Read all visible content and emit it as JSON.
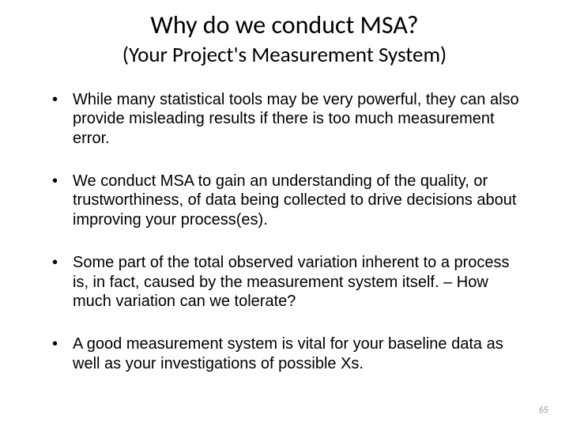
{
  "title": "Why do we conduct MSA?",
  "subtitle": "(Your Project's Measurement System)",
  "bullets": [
    "While many statistical tools may be very powerful, they can also provide misleading results if there is too much measurement error.",
    "We conduct MSA to gain an understanding of the quality, or trustworthiness, of data being collected to drive decisions about improving your process(es).",
    "Some part of the total observed variation inherent to a process is, in fact, caused by the measurement system itself. – How much variation can we tolerate?",
    "A good measurement system is vital for your baseline data as well as your investigations of possible Xs."
  ],
  "page_number": "65",
  "colors": {
    "background": "#ffffff",
    "text": "#000000",
    "page_num": "#9a9a9a"
  },
  "typography": {
    "title_fontsize": 32,
    "subtitle_fontsize": 27,
    "body_fontsize": 20,
    "page_num_fontsize": 12,
    "title_font": "Calibri",
    "body_font": "Arial"
  }
}
